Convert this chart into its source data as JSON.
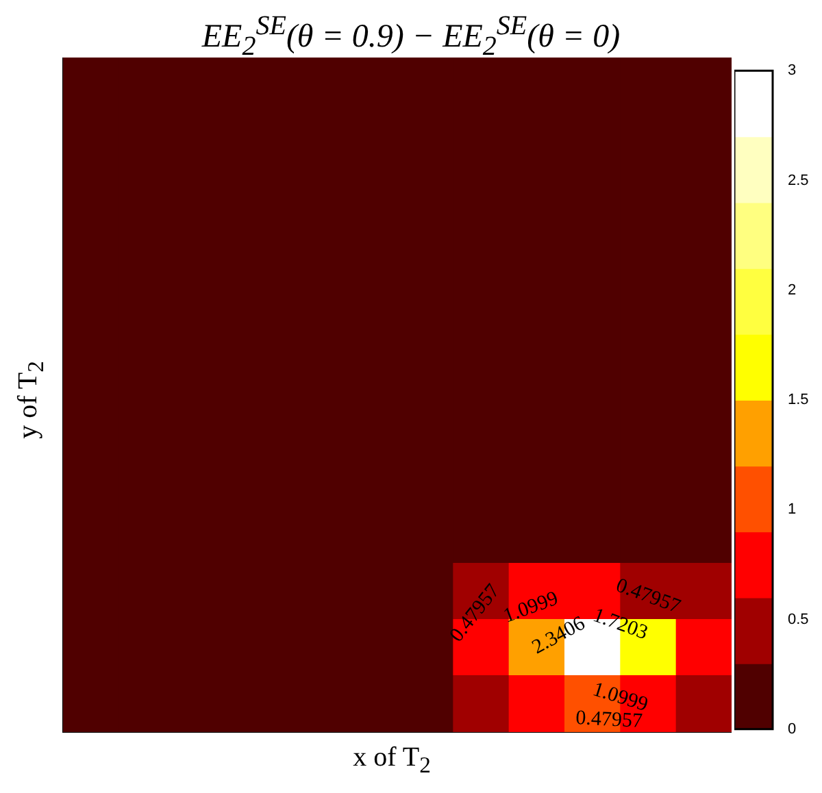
{
  "chart_data": {
    "type": "heatmap",
    "title": "EE$_{2}$$^{SE}$(θ = 0.9) − EE$_{2}$$^{SE}$(θ = 0)",
    "xlabel": "x of T$_{2}$",
    "ylabel": "y of T$_{2}$",
    "categories": [
      null,
      null,
      null,
      null,
      null,
      null,
      null,
      null,
      null,
      null,
      null,
      null
    ],
    "y_categories": [
      null,
      null,
      null,
      null,
      null,
      null,
      null,
      null,
      null,
      null,
      null,
      null
    ],
    "cells": [
      [
        0.1,
        0.1,
        0.1,
        0.1,
        0.1,
        0.1,
        0.1,
        0.1,
        0.1,
        0.1,
        0.1,
        0.1
      ],
      [
        0.1,
        0.1,
        0.1,
        0.1,
        0.1,
        0.1,
        0.1,
        0.1,
        0.1,
        0.1,
        0.1,
        0.1
      ],
      [
        0.1,
        0.1,
        0.1,
        0.1,
        0.1,
        0.1,
        0.1,
        0.1,
        0.1,
        0.1,
        0.1,
        0.1
      ],
      [
        0.1,
        0.1,
        0.1,
        0.1,
        0.1,
        0.1,
        0.1,
        0.1,
        0.1,
        0.1,
        0.1,
        0.1
      ],
      [
        0.1,
        0.1,
        0.1,
        0.1,
        0.1,
        0.1,
        0.1,
        0.1,
        0.1,
        0.1,
        0.1,
        0.1
      ],
      [
        0.1,
        0.1,
        0.1,
        0.1,
        0.1,
        0.1,
        0.1,
        0.1,
        0.1,
        0.1,
        0.1,
        0.1
      ],
      [
        0.1,
        0.1,
        0.1,
        0.1,
        0.1,
        0.1,
        0.1,
        0.1,
        0.1,
        0.1,
        0.1,
        0.1
      ],
      [
        0.1,
        0.1,
        0.1,
        0.1,
        0.1,
        0.1,
        0.1,
        0.1,
        0.1,
        0.1,
        0.1,
        0.1
      ],
      [
        0.1,
        0.1,
        0.1,
        0.1,
        0.1,
        0.1,
        0.1,
        0.1,
        0.1,
        0.1,
        0.1,
        0.1
      ],
      [
        0.1,
        0.1,
        0.1,
        0.1,
        0.1,
        0.1,
        0.1,
        0.4,
        0.7,
        0.8,
        0.6,
        0.4
      ],
      [
        0.1,
        0.1,
        0.1,
        0.1,
        0.1,
        0.1,
        0.1,
        0.7,
        1.3,
        2.9,
        1.6,
        0.7
      ],
      [
        0.1,
        0.1,
        0.1,
        0.1,
        0.1,
        0.1,
        0.1,
        0.4,
        0.7,
        1.0,
        0.7,
        0.4
      ]
    ],
    "clim": [
      0,
      3
    ],
    "cticks": [
      0,
      0.5,
      1,
      1.5,
      2,
      2.5,
      3
    ],
    "tick_labels": false,
    "annotations": [
      "0.47957",
      "0.47957",
      "0.47957",
      "1.0999",
      "1.0999",
      "1.7203",
      "2.3406"
    ]
  }
}
